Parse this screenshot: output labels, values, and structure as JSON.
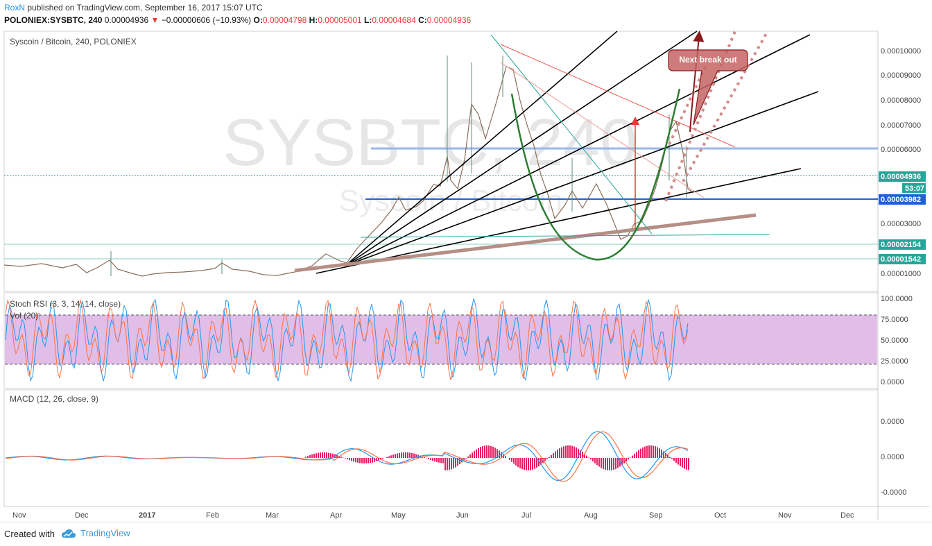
{
  "header": {
    "author": "RoxN",
    "published_text": "published on TradingView.com, September 16, 2017 15:07 UTC",
    "symbol": "POLONIEX:SYSBTC, 240",
    "last": "0.00004936",
    "change": "−0.00000606 (−10.93%)",
    "open_label": "O:",
    "open": "0.00004798",
    "high_label": "H:",
    "high": "0.00005001",
    "low_label": "L:",
    "low": "0.00004684",
    "close_label": "C:",
    "close": "0.00004936"
  },
  "main_pane": {
    "title": "Syscoin / Bitcoin, 240, POLONIEX",
    "watermark_symbol": "SYSBTC, 240",
    "watermark_name": "Syscoin / Bitcoin",
    "annotation": "Next break out",
    "price_labels": [
      "0.00010000",
      "0.00009000",
      "0.00008000",
      "0.00007000",
      "0.00006000",
      "0.00003000",
      "0.00001000"
    ],
    "badges": [
      {
        "text": "0.00004936",
        "color": "#26a69a"
      },
      {
        "text": "53:07",
        "color": "#26a69a"
      },
      {
        "text": "0.00003982",
        "color": "#1e63d6"
      },
      {
        "text": "0.00002154",
        "color": "#26a69a"
      },
      {
        "text": "0.00001542",
        "color": "#26a69a"
      }
    ]
  },
  "stoch_pane": {
    "title": "Stoch RSI (3, 3, 14, 14, close)",
    "vol_title": "Vol (20)",
    "levels": [
      "100.0000",
      "75.0000",
      "50.0000",
      "25.0000",
      "0.0000"
    ]
  },
  "macd_pane": {
    "title": "MACD (12, 26, close, 9)",
    "levels": [
      "0.0000",
      "0.0000",
      "-0.0000"
    ]
  },
  "x_axis": {
    "labels": [
      "Nov",
      "Dec",
      "2017",
      "Feb",
      "Mar",
      "Apr",
      "May",
      "Jun",
      "Jul",
      "Aug",
      "Sep",
      "Oct",
      "Nov",
      "Dec"
    ]
  },
  "footer": {
    "created_with": "Created with",
    "brand": "TradingView"
  },
  "colors": {
    "accent": "#2196f3",
    "up": "#26a69a",
    "down": "#ef5350",
    "stoch_band": "#e1bee7",
    "macd_hist": "#e91e63"
  }
}
